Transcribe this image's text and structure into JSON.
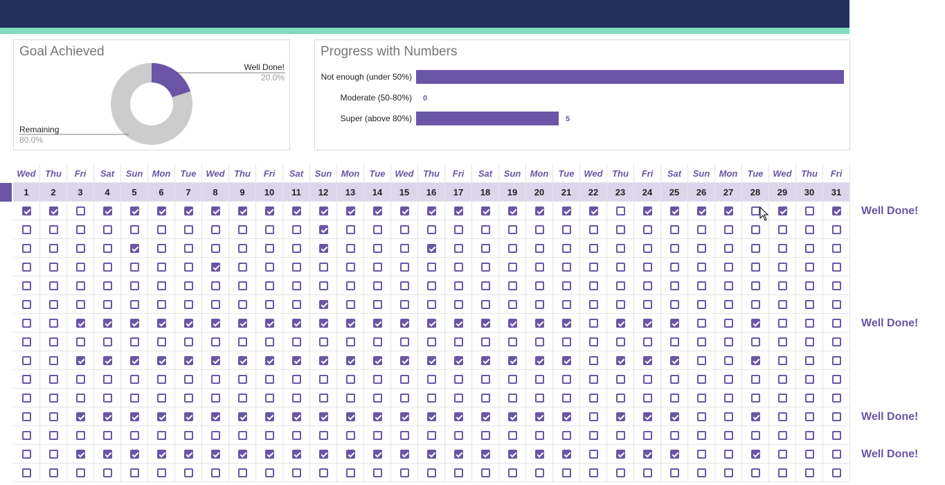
{
  "colors": {
    "header": "#232e5c",
    "accent": "#7ddcc0",
    "purple": "#6a55a6",
    "grey": "#cccccc"
  },
  "goal_card": {
    "title": "Goal Achieved",
    "done_label": "Well Done!",
    "done_pct": "20.0%",
    "done_value": 20,
    "remaining_label": "Remaining",
    "remaining_pct": "80.0%",
    "remaining_value": 80
  },
  "progress_card": {
    "title": "Progress with Numbers"
  },
  "chart_data": [
    {
      "type": "pie",
      "title": "Goal Achieved",
      "labels": [
        "Well Done!",
        "Remaining"
      ],
      "values": [
        20.0,
        80.0
      ],
      "colors": [
        "#6a55a6",
        "#cccccc"
      ]
    },
    {
      "type": "bar",
      "orientation": "horizontal",
      "title": "Progress with Numbers",
      "categories": [
        "Not enough (under 50%)",
        "Moderate (50-80%)",
        "Super (above 80%)"
      ],
      "values": [
        15,
        0,
        5
      ],
      "value_labels": [
        "",
        "0",
        "5"
      ],
      "xlim": [
        0,
        15
      ]
    }
  ],
  "calendar": {
    "days": [
      "Wed",
      "Thu",
      "Fri",
      "Sat",
      "Sun",
      "Mon",
      "Tue",
      "Wed",
      "Thu",
      "Fri",
      "Sat",
      "Sun",
      "Mon",
      "Tue",
      "Wed",
      "Thu",
      "Fri",
      "Sat",
      "Sun",
      "Mon",
      "Tue",
      "Wed",
      "Thu",
      "Fri",
      "Sat",
      "Sun",
      "Mon",
      "Tue",
      "Wed",
      "Thu",
      "Fri"
    ],
    "dates": [
      "1",
      "2",
      "3",
      "4",
      "5",
      "6",
      "7",
      "8",
      "9",
      "10",
      "11",
      "12",
      "13",
      "14",
      "15",
      "16",
      "17",
      "18",
      "19",
      "20",
      "21",
      "22",
      "23",
      "24",
      "25",
      "26",
      "27",
      "28",
      "29",
      "30",
      "31"
    ],
    "rows": [
      {
        "checks": "1101111111111111111111011110101",
        "status": "Well Done!"
      },
      {
        "checks": "0000000000010000000000000000000",
        "status": ""
      },
      {
        "checks": "0000100000010001000000000000000",
        "status": ""
      },
      {
        "checks": "0000000100000000000000000000000",
        "status": ""
      },
      {
        "checks": "0000000000000000000000000000000",
        "status": ""
      },
      {
        "checks": "0000000000010000000000000000000",
        "status": ""
      },
      {
        "checks": "0011111111111111111110111001000",
        "status": "Well Done!"
      },
      {
        "checks": "0000000000000000000000000000000",
        "status": ""
      },
      {
        "checks": "0011111111111111111110111001000",
        "status": ""
      },
      {
        "checks": "0000000000000000000000000000000",
        "status": ""
      },
      {
        "checks": "0000000000000000000000000000000",
        "status": ""
      },
      {
        "checks": "0011111111111111111110111001000",
        "status": "Well Done!"
      },
      {
        "checks": "0000000000000000000000000000000",
        "status": ""
      },
      {
        "checks": "0011111111111111111110111001000",
        "status": "Well Done!"
      },
      {
        "checks": "0000000000000000000000000000000",
        "status": ""
      }
    ]
  }
}
